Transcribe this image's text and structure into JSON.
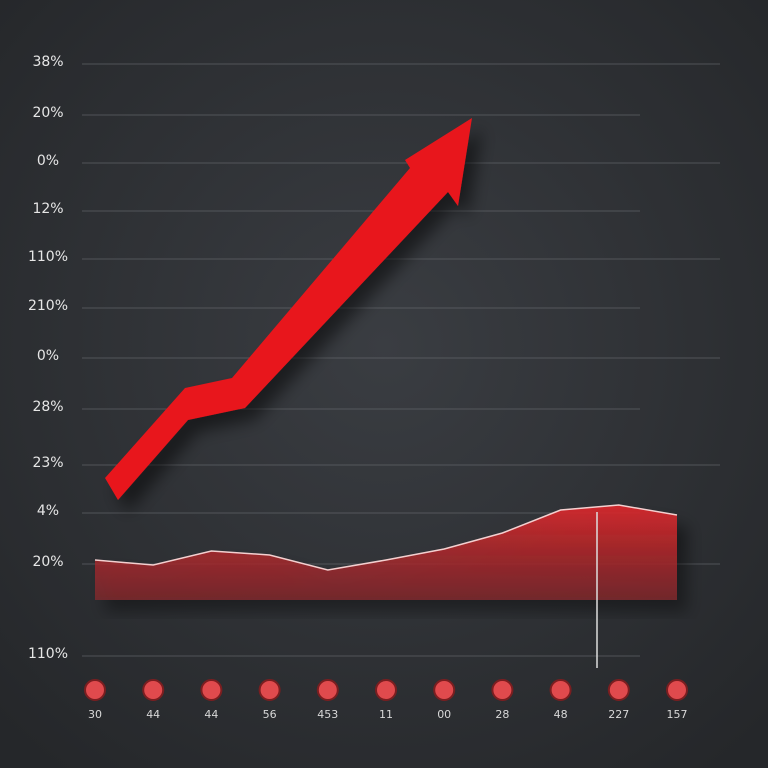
{
  "chart_data": {
    "type": "line",
    "y_labels": [
      "38%",
      "20%",
      "0%",
      "12%",
      "110%",
      "210%",
      "0%",
      "28%",
      "23%",
      "4%",
      "20%",
      "110%"
    ],
    "categories": [
      "30",
      "44",
      "44",
      "56",
      "453",
      "11",
      "00",
      "28",
      "48",
      "227",
      "157"
    ],
    "series": [
      {
        "name": null,
        "color": "#d7262b",
        "values": [
          40,
          35,
          49,
          45,
          30,
          40,
          51,
          67,
          90,
          95,
          85
        ]
      }
    ],
    "ylim": [
      0,
      100
    ]
  }
}
